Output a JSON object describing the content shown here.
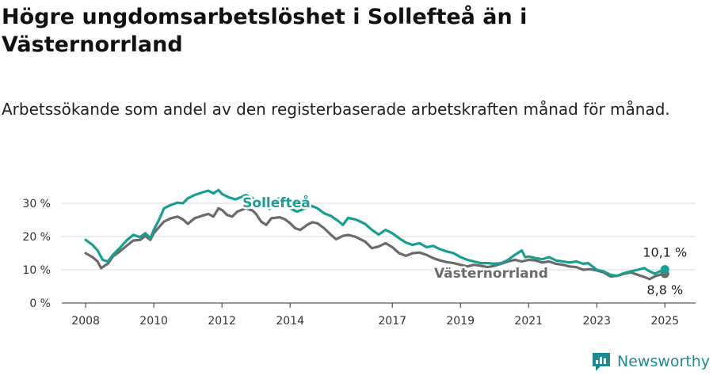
{
  "chart_data": {
    "type": "line",
    "title": "Högre ungdomsarbetslöshet i Sollefteå än i Västernorrland",
    "subtitle": "Arbetssökande som andel av den registerbaserade arbetskraften månad för månad.",
    "ylim": [
      0,
      35
    ],
    "yticks": [
      {
        "value": 0,
        "label": "0 %"
      },
      {
        "value": 10,
        "label": "10 %"
      },
      {
        "value": 20,
        "label": "20 %"
      },
      {
        "value": 30,
        "label": "30 %"
      }
    ],
    "xlim": [
      2007.3,
      2025.9
    ],
    "xticks": [
      {
        "value": 2008,
        "label": "2008"
      },
      {
        "value": 2010,
        "label": "2010"
      },
      {
        "value": 2012,
        "label": "2012"
      },
      {
        "value": 2014,
        "label": "2014"
      },
      {
        "value": 2017,
        "label": "2017"
      },
      {
        "value": 2019,
        "label": "2019"
      },
      {
        "value": 2021,
        "label": "2021"
      },
      {
        "value": 2023,
        "label": "2023"
      },
      {
        "value": 2025,
        "label": "2025"
      }
    ],
    "series": [
      {
        "name": "Sollefteå",
        "color": "#1a9e91",
        "end_label": "10,1 %",
        "points": [
          [
            2008.0,
            19.0
          ],
          [
            2008.2,
            17.5
          ],
          [
            2008.35,
            15.8
          ],
          [
            2008.5,
            13.0
          ],
          [
            2008.65,
            12.5
          ],
          [
            2008.8,
            14.5
          ],
          [
            2009.0,
            16.5
          ],
          [
            2009.2,
            18.8
          ],
          [
            2009.4,
            20.5
          ],
          [
            2009.6,
            19.8
          ],
          [
            2009.75,
            21.0
          ],
          [
            2009.9,
            19.5
          ],
          [
            2010.0,
            22.0
          ],
          [
            2010.15,
            25.0
          ],
          [
            2010.3,
            28.5
          ],
          [
            2010.5,
            29.5
          ],
          [
            2010.7,
            30.2
          ],
          [
            2010.85,
            30.0
          ],
          [
            2011.0,
            31.5
          ],
          [
            2011.2,
            32.5
          ],
          [
            2011.4,
            33.2
          ],
          [
            2011.6,
            33.8
          ],
          [
            2011.75,
            33.0
          ],
          [
            2011.9,
            34.0
          ],
          [
            2012.0,
            32.8
          ],
          [
            2012.2,
            31.8
          ],
          [
            2012.4,
            31.2
          ],
          [
            2012.55,
            31.8
          ],
          [
            2012.7,
            32.5
          ],
          [
            2012.9,
            31.6
          ],
          [
            2013.0,
            30.0
          ],
          [
            2013.2,
            29.5
          ],
          [
            2013.4,
            28.3
          ],
          [
            2013.5,
            31.0
          ],
          [
            2013.7,
            31.5
          ],
          [
            2013.9,
            30.5
          ],
          [
            2014.0,
            28.5
          ],
          [
            2014.2,
            27.5
          ],
          [
            2014.45,
            28.5
          ],
          [
            2014.65,
            29.2
          ],
          [
            2014.8,
            28.5
          ],
          [
            2015.0,
            27.0
          ],
          [
            2015.2,
            26.2
          ],
          [
            2015.4,
            24.8
          ],
          [
            2015.55,
            23.5
          ],
          [
            2015.7,
            25.6
          ],
          [
            2015.9,
            25.2
          ],
          [
            2016.0,
            24.8
          ],
          [
            2016.2,
            23.8
          ],
          [
            2016.4,
            22.0
          ],
          [
            2016.6,
            20.6
          ],
          [
            2016.8,
            22.0
          ],
          [
            2017.0,
            21.0
          ],
          [
            2017.2,
            19.5
          ],
          [
            2017.4,
            18.2
          ],
          [
            2017.6,
            17.5
          ],
          [
            2017.8,
            18.0
          ],
          [
            2018.0,
            16.8
          ],
          [
            2018.2,
            17.2
          ],
          [
            2018.4,
            16.2
          ],
          [
            2018.6,
            15.5
          ],
          [
            2018.8,
            15.0
          ],
          [
            2019.0,
            13.8
          ],
          [
            2019.2,
            13.0
          ],
          [
            2019.4,
            12.5
          ],
          [
            2019.6,
            12.0
          ],
          [
            2019.8,
            12.0
          ],
          [
            2020.0,
            11.8
          ],
          [
            2020.2,
            12.0
          ],
          [
            2020.4,
            13.0
          ],
          [
            2020.6,
            14.5
          ],
          [
            2020.8,
            15.8
          ],
          [
            2020.9,
            13.8
          ],
          [
            2021.0,
            14.0
          ],
          [
            2021.2,
            13.5
          ],
          [
            2021.4,
            13.2
          ],
          [
            2021.6,
            13.8
          ],
          [
            2021.8,
            12.8
          ],
          [
            2022.0,
            12.5
          ],
          [
            2022.2,
            12.2
          ],
          [
            2022.4,
            12.5
          ],
          [
            2022.6,
            11.8
          ],
          [
            2022.75,
            12.0
          ],
          [
            2022.85,
            11.2
          ],
          [
            2023.0,
            10.0
          ],
          [
            2023.2,
            9.5
          ],
          [
            2023.4,
            8.5
          ],
          [
            2023.6,
            8.2
          ],
          [
            2023.8,
            9.0
          ],
          [
            2024.0,
            9.5
          ],
          [
            2024.2,
            10.0
          ],
          [
            2024.4,
            10.5
          ],
          [
            2024.5,
            9.8
          ],
          [
            2024.7,
            8.8
          ],
          [
            2024.85,
            9.5
          ],
          [
            2025.0,
            10.1
          ]
        ]
      },
      {
        "name": "Västernorrland",
        "color": "#6b6b6b",
        "end_label": "8,8 %",
        "points": [
          [
            2008.0,
            15.0
          ],
          [
            2008.2,
            13.8
          ],
          [
            2008.35,
            12.5
          ],
          [
            2008.45,
            10.5
          ],
          [
            2008.65,
            11.8
          ],
          [
            2008.8,
            14.0
          ],
          [
            2009.0,
            15.5
          ],
          [
            2009.2,
            17.2
          ],
          [
            2009.4,
            18.8
          ],
          [
            2009.6,
            19.0
          ],
          [
            2009.75,
            20.2
          ],
          [
            2009.9,
            19.0
          ],
          [
            2010.0,
            21.0
          ],
          [
            2010.15,
            22.8
          ],
          [
            2010.3,
            24.5
          ],
          [
            2010.5,
            25.5
          ],
          [
            2010.7,
            26.0
          ],
          [
            2010.85,
            25.2
          ],
          [
            2011.0,
            23.8
          ],
          [
            2011.2,
            25.5
          ],
          [
            2011.4,
            26.2
          ],
          [
            2011.6,
            26.8
          ],
          [
            2011.75,
            26.0
          ],
          [
            2011.9,
            28.5
          ],
          [
            2012.0,
            28.0
          ],
          [
            2012.15,
            26.5
          ],
          [
            2012.3,
            26.0
          ],
          [
            2012.45,
            27.5
          ],
          [
            2012.7,
            28.5
          ],
          [
            2012.9,
            27.8
          ],
          [
            2013.0,
            26.8
          ],
          [
            2013.15,
            24.5
          ],
          [
            2013.3,
            23.5
          ],
          [
            2013.45,
            25.5
          ],
          [
            2013.7,
            25.8
          ],
          [
            2013.85,
            25.2
          ],
          [
            2014.0,
            24.0
          ],
          [
            2014.15,
            22.5
          ],
          [
            2014.3,
            22.0
          ],
          [
            2014.5,
            23.5
          ],
          [
            2014.65,
            24.3
          ],
          [
            2014.8,
            24.0
          ],
          [
            2015.0,
            22.5
          ],
          [
            2015.2,
            20.5
          ],
          [
            2015.35,
            19.2
          ],
          [
            2015.55,
            20.2
          ],
          [
            2015.7,
            20.5
          ],
          [
            2015.9,
            20.0
          ],
          [
            2016.0,
            19.5
          ],
          [
            2016.2,
            18.5
          ],
          [
            2016.4,
            16.5
          ],
          [
            2016.6,
            17.0
          ],
          [
            2016.8,
            18.0
          ],
          [
            2017.0,
            16.8
          ],
          [
            2017.2,
            15.0
          ],
          [
            2017.4,
            14.2
          ],
          [
            2017.6,
            15.0
          ],
          [
            2017.8,
            15.2
          ],
          [
            2018.0,
            14.5
          ],
          [
            2018.2,
            13.5
          ],
          [
            2018.4,
            12.8
          ],
          [
            2018.6,
            12.3
          ],
          [
            2018.8,
            12.0
          ],
          [
            2019.0,
            11.5
          ],
          [
            2019.2,
            11.0
          ],
          [
            2019.4,
            11.5
          ],
          [
            2019.6,
            11.2
          ],
          [
            2019.8,
            10.8
          ],
          [
            2020.0,
            11.2
          ],
          [
            2020.2,
            11.8
          ],
          [
            2020.4,
            12.5
          ],
          [
            2020.6,
            13.0
          ],
          [
            2020.8,
            12.5
          ],
          [
            2021.0,
            13.0
          ],
          [
            2021.2,
            12.8
          ],
          [
            2021.4,
            12.2
          ],
          [
            2021.6,
            12.5
          ],
          [
            2021.8,
            11.8
          ],
          [
            2022.0,
            11.5
          ],
          [
            2022.2,
            11.0
          ],
          [
            2022.4,
            10.8
          ],
          [
            2022.6,
            10.0
          ],
          [
            2022.8,
            10.2
          ],
          [
            2023.0,
            9.8
          ],
          [
            2023.2,
            9.2
          ],
          [
            2023.4,
            8.0
          ],
          [
            2023.6,
            8.2
          ],
          [
            2023.8,
            8.8
          ],
          [
            2024.0,
            9.2
          ],
          [
            2024.2,
            8.5
          ],
          [
            2024.4,
            7.8
          ],
          [
            2024.55,
            7.2
          ],
          [
            2024.7,
            8.0
          ],
          [
            2024.85,
            8.5
          ],
          [
            2025.0,
            8.8
          ]
        ]
      }
    ],
    "grid": true,
    "legend": "inline labels on lines"
  },
  "brand": {
    "name": "Newsworthy"
  }
}
